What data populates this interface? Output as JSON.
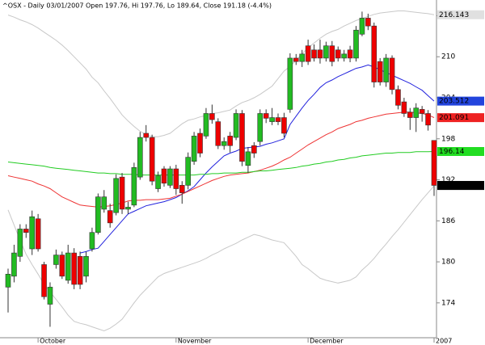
{
  "chart_data": {
    "type": "candlestick",
    "title": "^OSX - Daily 03/01/2007 Open 197.76, Hi 197.76, Lo 189.64, Close 191.18 (-4.4%)",
    "categories": [
      null,
      null,
      null,
      null,
      null,
      "October",
      null,
      null,
      null,
      null,
      null,
      null,
      null,
      null,
      null,
      null,
      null,
      null,
      null,
      null,
      null,
      null,
      null,
      null,
      null,
      null,
      null,
      null,
      "November",
      null,
      null,
      null,
      null,
      null,
      null,
      null,
      null,
      null,
      null,
      null,
      null,
      null,
      null,
      null,
      null,
      null,
      null,
      null,
      null,
      null,
      "December",
      null,
      null,
      null,
      null,
      null,
      null,
      null,
      null,
      null,
      null,
      null,
      null,
      null,
      null,
      null,
      null,
      null,
      null,
      null,
      null,
      "2007"
    ],
    "open": [
      176.3,
      177.9,
      180.8,
      184.8,
      181.9,
      186.3,
      179.6,
      173.8,
      179.6,
      181,
      177.3,
      181.3,
      180.8,
      177.9,
      181.9,
      184.3,
      187.7,
      187.5,
      187.2,
      192.4,
      187.7,
      188.3,
      192.4,
      198.8,
      198.2,
      190.7,
      193.6,
      191.2,
      193.6,
      191.2,
      191.2,
      194.7,
      198.8,
      198.4,
      201.7,
      200.5,
      197,
      198.4,
      198.2,
      201.7,
      194.1,
      197,
      197.6,
      201.7,
      200.5,
      201.1,
      201.1,
      202.3,
      209.8,
      209.3,
      211.6,
      211,
      211,
      209.8,
      211.6,
      211,
      209.8,
      211,
      209.8,
      213.3,
      215.65,
      214.5,
      209.3,
      206.3,
      209.8,
      205.2,
      203.4,
      201.9,
      201.1,
      202.3,
      201.7,
      197.76
    ],
    "high": [
      179,
      182.5,
      185.5,
      185.5,
      187.5,
      187,
      180,
      177,
      181.8,
      181.5,
      182.5,
      182,
      181.5,
      181.5,
      185,
      190,
      190.5,
      188.5,
      192.8,
      193,
      188.8,
      194.5,
      199,
      200,
      198.6,
      193.2,
      194,
      194,
      194.2,
      191.8,
      196,
      199,
      199.5,
      202.5,
      203,
      201,
      198.2,
      199,
      202.3,
      202.2,
      196.8,
      197.5,
      202.3,
      202.3,
      202.5,
      201.7,
      201.8,
      210.5,
      210.4,
      211,
      212.5,
      211.8,
      212.5,
      212.2,
      212.3,
      211.5,
      211,
      211.6,
      214.5,
      216.6,
      216.3,
      215,
      209.8,
      210.4,
      210.2,
      205.8,
      204,
      202.5,
      203.2,
      202.8,
      202.2,
      197.76
    ],
    "low": [
      172.6,
      177,
      180,
      183.5,
      181,
      181.5,
      174.5,
      170.5,
      179,
      177.5,
      176.8,
      176,
      176,
      177,
      181.5,
      184,
      187.2,
      185,
      186.8,
      187,
      187,
      188,
      192,
      197.6,
      191.2,
      190.2,
      191,
      190.8,
      189.8,
      188.5,
      190.6,
      194.2,
      195.3,
      198,
      200.2,
      196.5,
      196.4,
      196,
      197.8,
      194,
      193,
      195.2,
      197,
      200.3,
      200,
      200,
      198.2,
      201.8,
      208.8,
      208.5,
      208.8,
      209.3,
      209,
      209.3,
      208.6,
      209.3,
      209.3,
      209.2,
      209.3,
      213,
      213.9,
      205.5,
      205.8,
      205.6,
      204.5,
      202.3,
      201.2,
      199.3,
      199,
      200.5,
      199.2,
      189.64
    ],
    "close": [
      178.2,
      181.3,
      184.8,
      184.3,
      186.6,
      181.9,
      174.9,
      176.3,
      181,
      177.9,
      181.3,
      176.7,
      176.7,
      180.8,
      184.3,
      189.5,
      189.5,
      185.7,
      192.2,
      187.7,
      188,
      193.8,
      198.2,
      198.2,
      191.8,
      192.6,
      191.5,
      193.6,
      190.7,
      190.1,
      195.3,
      198.4,
      195.9,
      201.7,
      200.8,
      197,
      197.6,
      197,
      201.7,
      194.7,
      196.1,
      195.9,
      201.7,
      201,
      201.1,
      200.5,
      198.8,
      209.8,
      209.3,
      210.4,
      209.3,
      209.8,
      209.8,
      211.6,
      209.3,
      209.8,
      210.4,
      209.8,
      213.9,
      215.65,
      214.5,
      206.3,
      206.3,
      209.8,
      205.2,
      202.9,
      201.7,
      201.1,
      202.5,
      201.7,
      200,
      191.18
    ],
    "up_color": "#22bb22",
    "down_color": "#ee0000",
    "close_label_color": "#000000",
    "overlays": [
      {
        "color": "#c8c8c8",
        "label_color": "#e0e0e0",
        "values": [
          216.1,
          215.8,
          215.4,
          215.1,
          214.7,
          214.2,
          213.6,
          213.0,
          212.4,
          211.7,
          210.9,
          210.0,
          209.1,
          208.2,
          207.0,
          206.2,
          205.0,
          203.9,
          202.7,
          201.5,
          200.6,
          199.8,
          199.1,
          198.6,
          198.3,
          198.3,
          198.5,
          198.8,
          199.5,
          200.2,
          200.7,
          200.9,
          201.2,
          201.4,
          201.7,
          201.8,
          202.0,
          202.2,
          202.8,
          203.3,
          203.6,
          204.0,
          204.5,
          205.1,
          205.7,
          206.8,
          207.9,
          208.6,
          209.5,
          210.4,
          211.3,
          212.0,
          212.7,
          213.3,
          213.7,
          214.0,
          214.5,
          214.9,
          215.3,
          215.6,
          215.9,
          216.2,
          216.4,
          216.5,
          216.6,
          216.7,
          216.7,
          216.6,
          216.5,
          216.4,
          216.3,
          216.143
        ]
      },
      {
        "color": "#2222dd",
        "label_color": "#2244dd",
        "values": [
          null,
          null,
          null,
          null,
          null,
          null,
          null,
          null,
          null,
          null,
          null,
          null,
          181.3,
          181.5,
          181.8,
          182.0,
          183.0,
          184.0,
          185.0,
          186.0,
          187.0,
          187.4,
          187.8,
          188.2,
          188.4,
          188.6,
          188.8,
          189.1,
          189.4,
          189.9,
          190.4,
          191.0,
          192.0,
          193.0,
          193.9,
          194.7,
          195.5,
          195.9,
          196.2,
          196.6,
          196.7,
          196.8,
          196.9,
          197.2,
          197.4,
          197.7,
          198.0,
          200.1,
          201.3,
          202.5,
          203.6,
          204.5,
          205.5,
          206.2,
          206.6,
          207.1,
          207.5,
          207.9,
          208.3,
          208.5,
          208.8,
          208.5,
          208.1,
          207.7,
          207.3,
          206.9,
          206.5,
          206.1,
          205.6,
          205.1,
          204.3,
          203.512
        ]
      },
      {
        "color": "#ee3333",
        "label_color": "#ee2222",
        "values": [
          192.6,
          192.4,
          192.2,
          192.0,
          191.8,
          191.4,
          191.1,
          190.7,
          190.1,
          189.5,
          189.1,
          188.7,
          188.3,
          188.2,
          188.1,
          188.0,
          188.1,
          188.2,
          188.4,
          188.6,
          188.9,
          189.0,
          189.0,
          189.1,
          189.1,
          189.1,
          189.2,
          189.3,
          189.6,
          189.9,
          190.3,
          190.7,
          191.1,
          191.5,
          191.9,
          192.2,
          192.5,
          192.7,
          192.8,
          192.9,
          193.0,
          193.2,
          193.4,
          193.7,
          194.0,
          194.4,
          194.9,
          195.3,
          195.9,
          196.5,
          197.1,
          197.6,
          198.1,
          198.6,
          199.0,
          199.5,
          199.8,
          200.1,
          200.5,
          200.7,
          201.0,
          201.2,
          201.4,
          201.6,
          201.7,
          201.8,
          201.9,
          201.9,
          201.8,
          201.7,
          201.5,
          201.091
        ]
      },
      {
        "color": "#22cc22",
        "label_color": "#22dd22",
        "values": [
          194.6,
          194.5,
          194.4,
          194.3,
          194.2,
          194.1,
          194.0,
          193.8,
          193.7,
          193.6,
          193.5,
          193.4,
          193.3,
          193.2,
          193.1,
          193.0,
          193.0,
          192.9,
          192.9,
          192.8,
          192.8,
          192.8,
          192.7,
          192.7,
          192.7,
          192.7,
          192.7,
          192.7,
          192.7,
          192.7,
          192.7,
          192.7,
          192.8,
          192.8,
          192.9,
          192.9,
          193.0,
          193.0,
          193.0,
          193.1,
          193.1,
          193.2,
          193.3,
          193.3,
          193.4,
          193.5,
          193.6,
          193.7,
          193.8,
          194.0,
          194.1,
          194.3,
          194.4,
          194.6,
          194.7,
          194.9,
          195.0,
          195.2,
          195.3,
          195.5,
          195.6,
          195.7,
          195.8,
          195.9,
          195.9,
          196.0,
          196.0,
          196.0,
          196.1,
          196.1,
          196.1,
          196.14
        ]
      },
      {
        "color": "#c8c8c8",
        "label_color": "#d8d8d8",
        "values": [
          187.6,
          185.4,
          183.2,
          181.1,
          179.6,
          178.2,
          176.7,
          175.6,
          174.5,
          173.4,
          172.2,
          171.3,
          171.0,
          170.8,
          170.5,
          170.2,
          169.9,
          170.3,
          170.9,
          171.6,
          172.8,
          174.0,
          175.1,
          176.0,
          176.9,
          177.8,
          178.3,
          178.6,
          178.9,
          179.2,
          179.5,
          179.8,
          180.1,
          180.5,
          181.0,
          181.4,
          181.9,
          182.3,
          182.7,
          183.2,
          183.6,
          184.0,
          183.8,
          183.5,
          183.2,
          183.0,
          182.8,
          181.8,
          180.8,
          179.6,
          179.0,
          178.3,
          177.6,
          177.3,
          177.1,
          176.9,
          177.1,
          177.3,
          177.8,
          178.8,
          179.6,
          180.5,
          181.6,
          182.6,
          183.7,
          184.7,
          185.8,
          186.9,
          188.0,
          189.1,
          190.1,
          191.105
        ]
      }
    ],
    "ylim": [
      168.9,
      218.3
    ],
    "yticks": [
      174,
      180,
      186,
      192,
      198,
      204,
      210,
      216
    ]
  }
}
